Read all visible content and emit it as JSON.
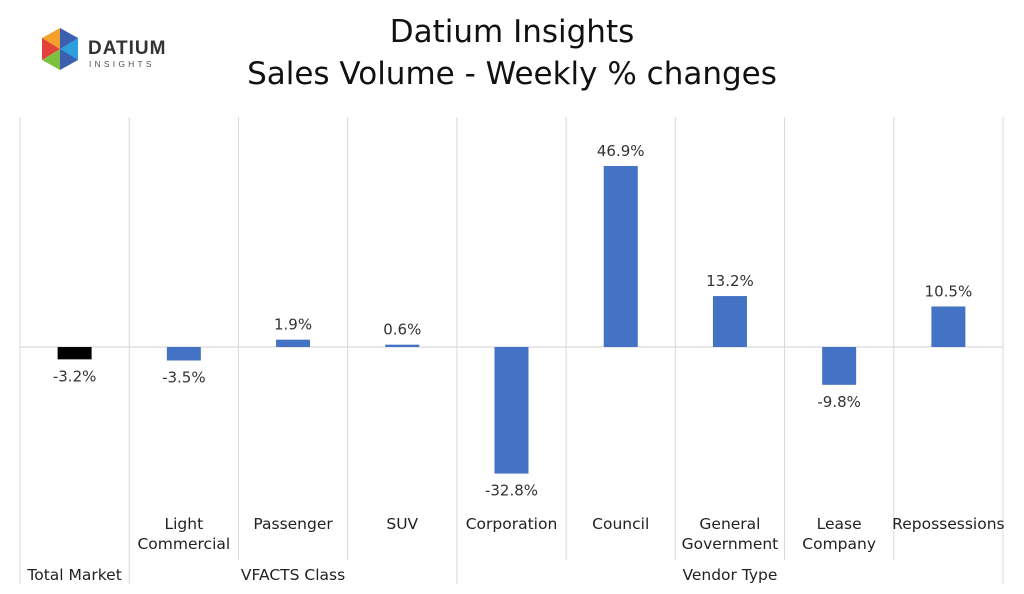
{
  "header": {
    "logo_text": "DATIUM",
    "logo_subtext": "INSIGHTS",
    "title_line1": "Datium Insights",
    "title_line2": "Sales Volume - Weekly % changes"
  },
  "colors": {
    "series": "#4472C4",
    "total": "#000000",
    "grid": "#d9d9d9"
  },
  "chart_data": {
    "type": "bar",
    "title": "Datium Insights\nSales Volume - Weekly % changes",
    "xlabel": "",
    "ylabel": "",
    "grid": true,
    "ylim": [
      -46,
      68
    ],
    "categories": [
      [
        "Total Market"
      ],
      [
        "Light",
        "Commercial"
      ],
      [
        "Passenger"
      ],
      [
        "SUV"
      ],
      [
        "Corporation"
      ],
      [
        "Council"
      ],
      [
        "General",
        "Government"
      ],
      [
        "Lease",
        "Company"
      ],
      [
        "Repossessions"
      ]
    ],
    "groups": [
      {
        "label": "",
        "start": 0,
        "end": 0
      },
      {
        "label": "VFACTS Class",
        "start": 1,
        "end": 3
      },
      {
        "label": "Vendor Type",
        "start": 4,
        "end": 8
      }
    ],
    "group_labels_bottom": [
      "Total Market",
      "VFACTS Class",
      "Vendor Type"
    ],
    "values": [
      -3.2,
      -3.5,
      1.9,
      0.6,
      -32.8,
      46.9,
      13.2,
      -9.8,
      10.5
    ],
    "data_labels": [
      "-3.2%",
      "-3.5%",
      "1.9%",
      "0.6%",
      "-32.8%",
      "46.9%",
      "13.2%",
      "-9.8%",
      "10.5%"
    ],
    "bar_colors": [
      "#000000",
      "#4472C4",
      "#4472C4",
      "#4472C4",
      "#4472C4",
      "#4472C4",
      "#4472C4",
      "#4472C4",
      "#4472C4"
    ]
  }
}
